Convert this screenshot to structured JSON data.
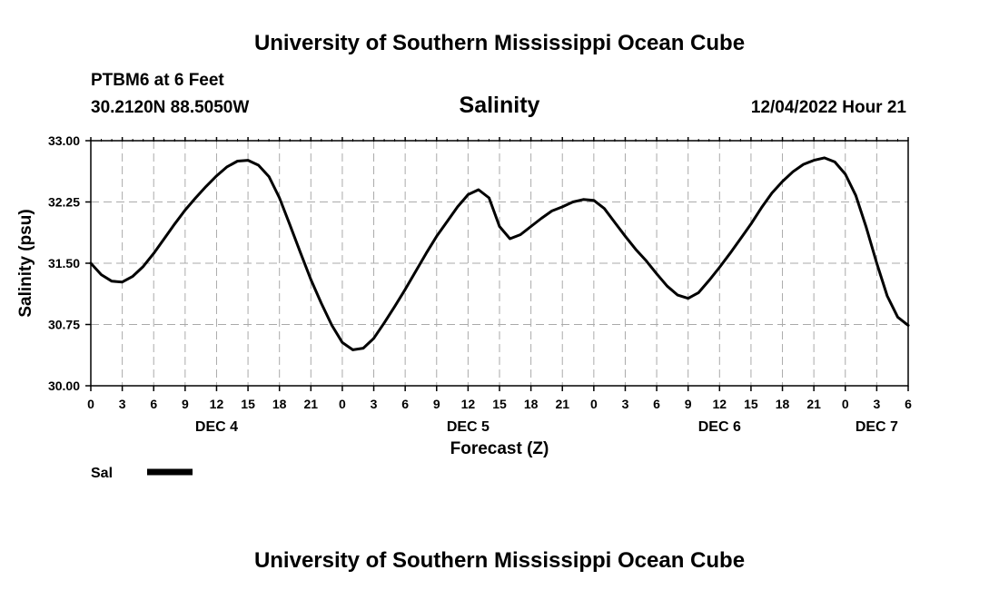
{
  "header": {
    "title": "University of Southern Mississippi Ocean Cube",
    "station": "PTBM6 at 6 Feet",
    "coords": "30.2120N  88.5050W",
    "datetime": "12/04/2022 Hour 21"
  },
  "footer": {
    "title": "University of Southern Mississippi Ocean Cube"
  },
  "chart_data": {
    "type": "line",
    "title": "Salinity",
    "xlabel": "Forecast (Z)",
    "ylabel": "Salinity (psu)",
    "ylim": [
      30.0,
      33.0
    ],
    "yticks": [
      "30.00",
      "30.75",
      "31.50",
      "32.25",
      "33.00"
    ],
    "xlim": [
      0,
      78
    ],
    "xtick_labels": [
      "0",
      "3",
      "6",
      "9",
      "12",
      "15",
      "18",
      "21",
      "0",
      "3",
      "6",
      "9",
      "12",
      "15",
      "18",
      "21",
      "0",
      "3",
      "6",
      "9",
      "12",
      "15",
      "18",
      "21",
      "0",
      "3",
      "6"
    ],
    "day_labels": [
      {
        "text": "DEC 4",
        "hour": 12
      },
      {
        "text": "DEC 5",
        "hour": 36
      },
      {
        "text": "DEC 6",
        "hour": 60
      },
      {
        "text": "DEC 7",
        "hour": 75
      }
    ],
    "grid": true,
    "legend": {
      "label": "Sal",
      "placement": "bottom-left"
    },
    "series": [
      {
        "name": "Sal",
        "x": [
          0,
          1,
          2,
          3,
          4,
          5,
          6,
          7,
          8,
          9,
          10,
          11,
          12,
          13,
          14,
          15,
          16,
          17,
          18,
          19,
          20,
          21,
          22,
          23,
          24,
          25,
          26,
          27,
          28,
          29,
          30,
          31,
          32,
          33,
          34,
          35,
          36,
          37,
          38,
          39,
          40,
          41,
          42,
          43,
          44,
          45,
          46,
          47,
          48,
          49,
          50,
          51,
          52,
          53,
          54,
          55,
          56,
          57,
          58,
          59,
          60,
          61,
          62,
          63,
          64,
          65,
          66,
          67,
          68,
          69,
          70,
          71,
          72,
          73,
          74,
          75,
          76,
          77,
          78
        ],
        "values": [
          31.5,
          31.36,
          31.28,
          31.27,
          31.34,
          31.46,
          31.62,
          31.8,
          31.98,
          32.15,
          32.3,
          32.44,
          32.57,
          32.68,
          32.75,
          32.76,
          32.7,
          32.56,
          32.3,
          31.97,
          31.63,
          31.3,
          31.01,
          30.74,
          30.53,
          30.44,
          30.46,
          30.58,
          30.77,
          30.97,
          31.18,
          31.4,
          31.62,
          31.83,
          32.01,
          32.19,
          32.34,
          32.4,
          32.3,
          31.95,
          31.8,
          31.85,
          31.95,
          32.05,
          32.14,
          32.19,
          32.25,
          32.28,
          32.27,
          32.17,
          32.0,
          31.83,
          31.67,
          31.53,
          31.37,
          31.22,
          31.11,
          31.07,
          31.14,
          31.29,
          31.45,
          31.62,
          31.8,
          31.98,
          32.18,
          32.36,
          32.5,
          32.62,
          32.71,
          32.76,
          32.79,
          32.74,
          32.59,
          32.33,
          31.94,
          31.5,
          31.1,
          30.84,
          30.74
        ]
      }
    ]
  }
}
